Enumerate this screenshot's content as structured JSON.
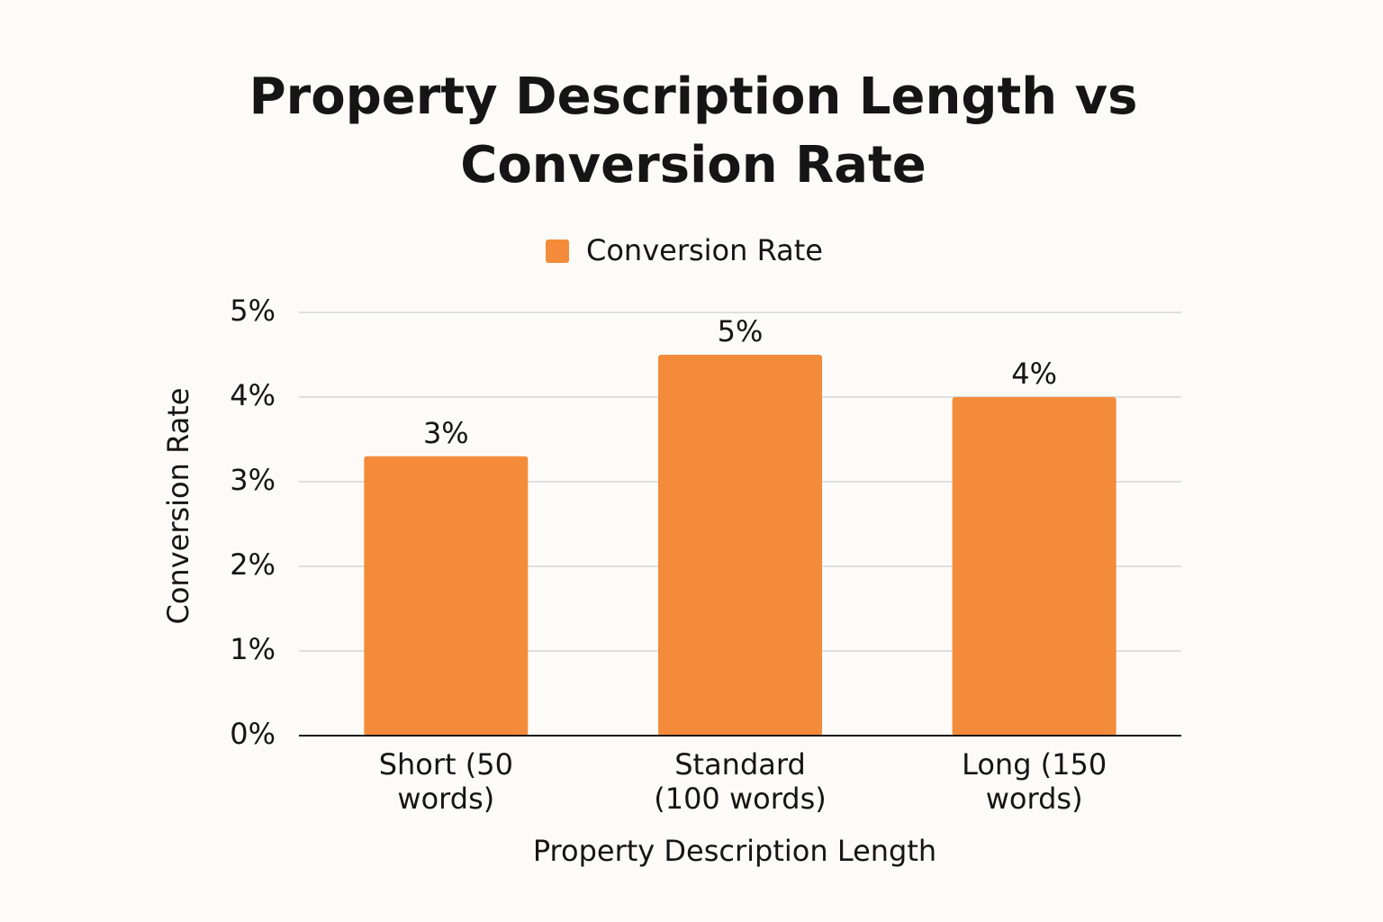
{
  "chart_data": {
    "type": "bar",
    "title": "Property Description Length vs Conversion Rate",
    "x_label": "Property Description Length",
    "y_label": "Conversion Rate",
    "categories": [
      "Short (50 words)",
      "Standard (100 words)",
      "Long (150 words)"
    ],
    "series": [
      {
        "name": "Conversion Rate",
        "color": "#f38b3a",
        "values": [
          3.3,
          4.5,
          4.0
        ],
        "value_labels": [
          "3%",
          "5%",
          "4%"
        ]
      }
    ],
    "ylim": [
      0,
      5
    ],
    "yticks": [
      {
        "value": 0,
        "label": "0%"
      },
      {
        "value": 1,
        "label": "1%"
      },
      {
        "value": 2,
        "label": "2%"
      },
      {
        "value": 3,
        "label": "3%"
      },
      {
        "value": 4,
        "label": "4%"
      },
      {
        "value": 5,
        "label": "5%"
      }
    ],
    "grid": true,
    "legend": "top"
  }
}
